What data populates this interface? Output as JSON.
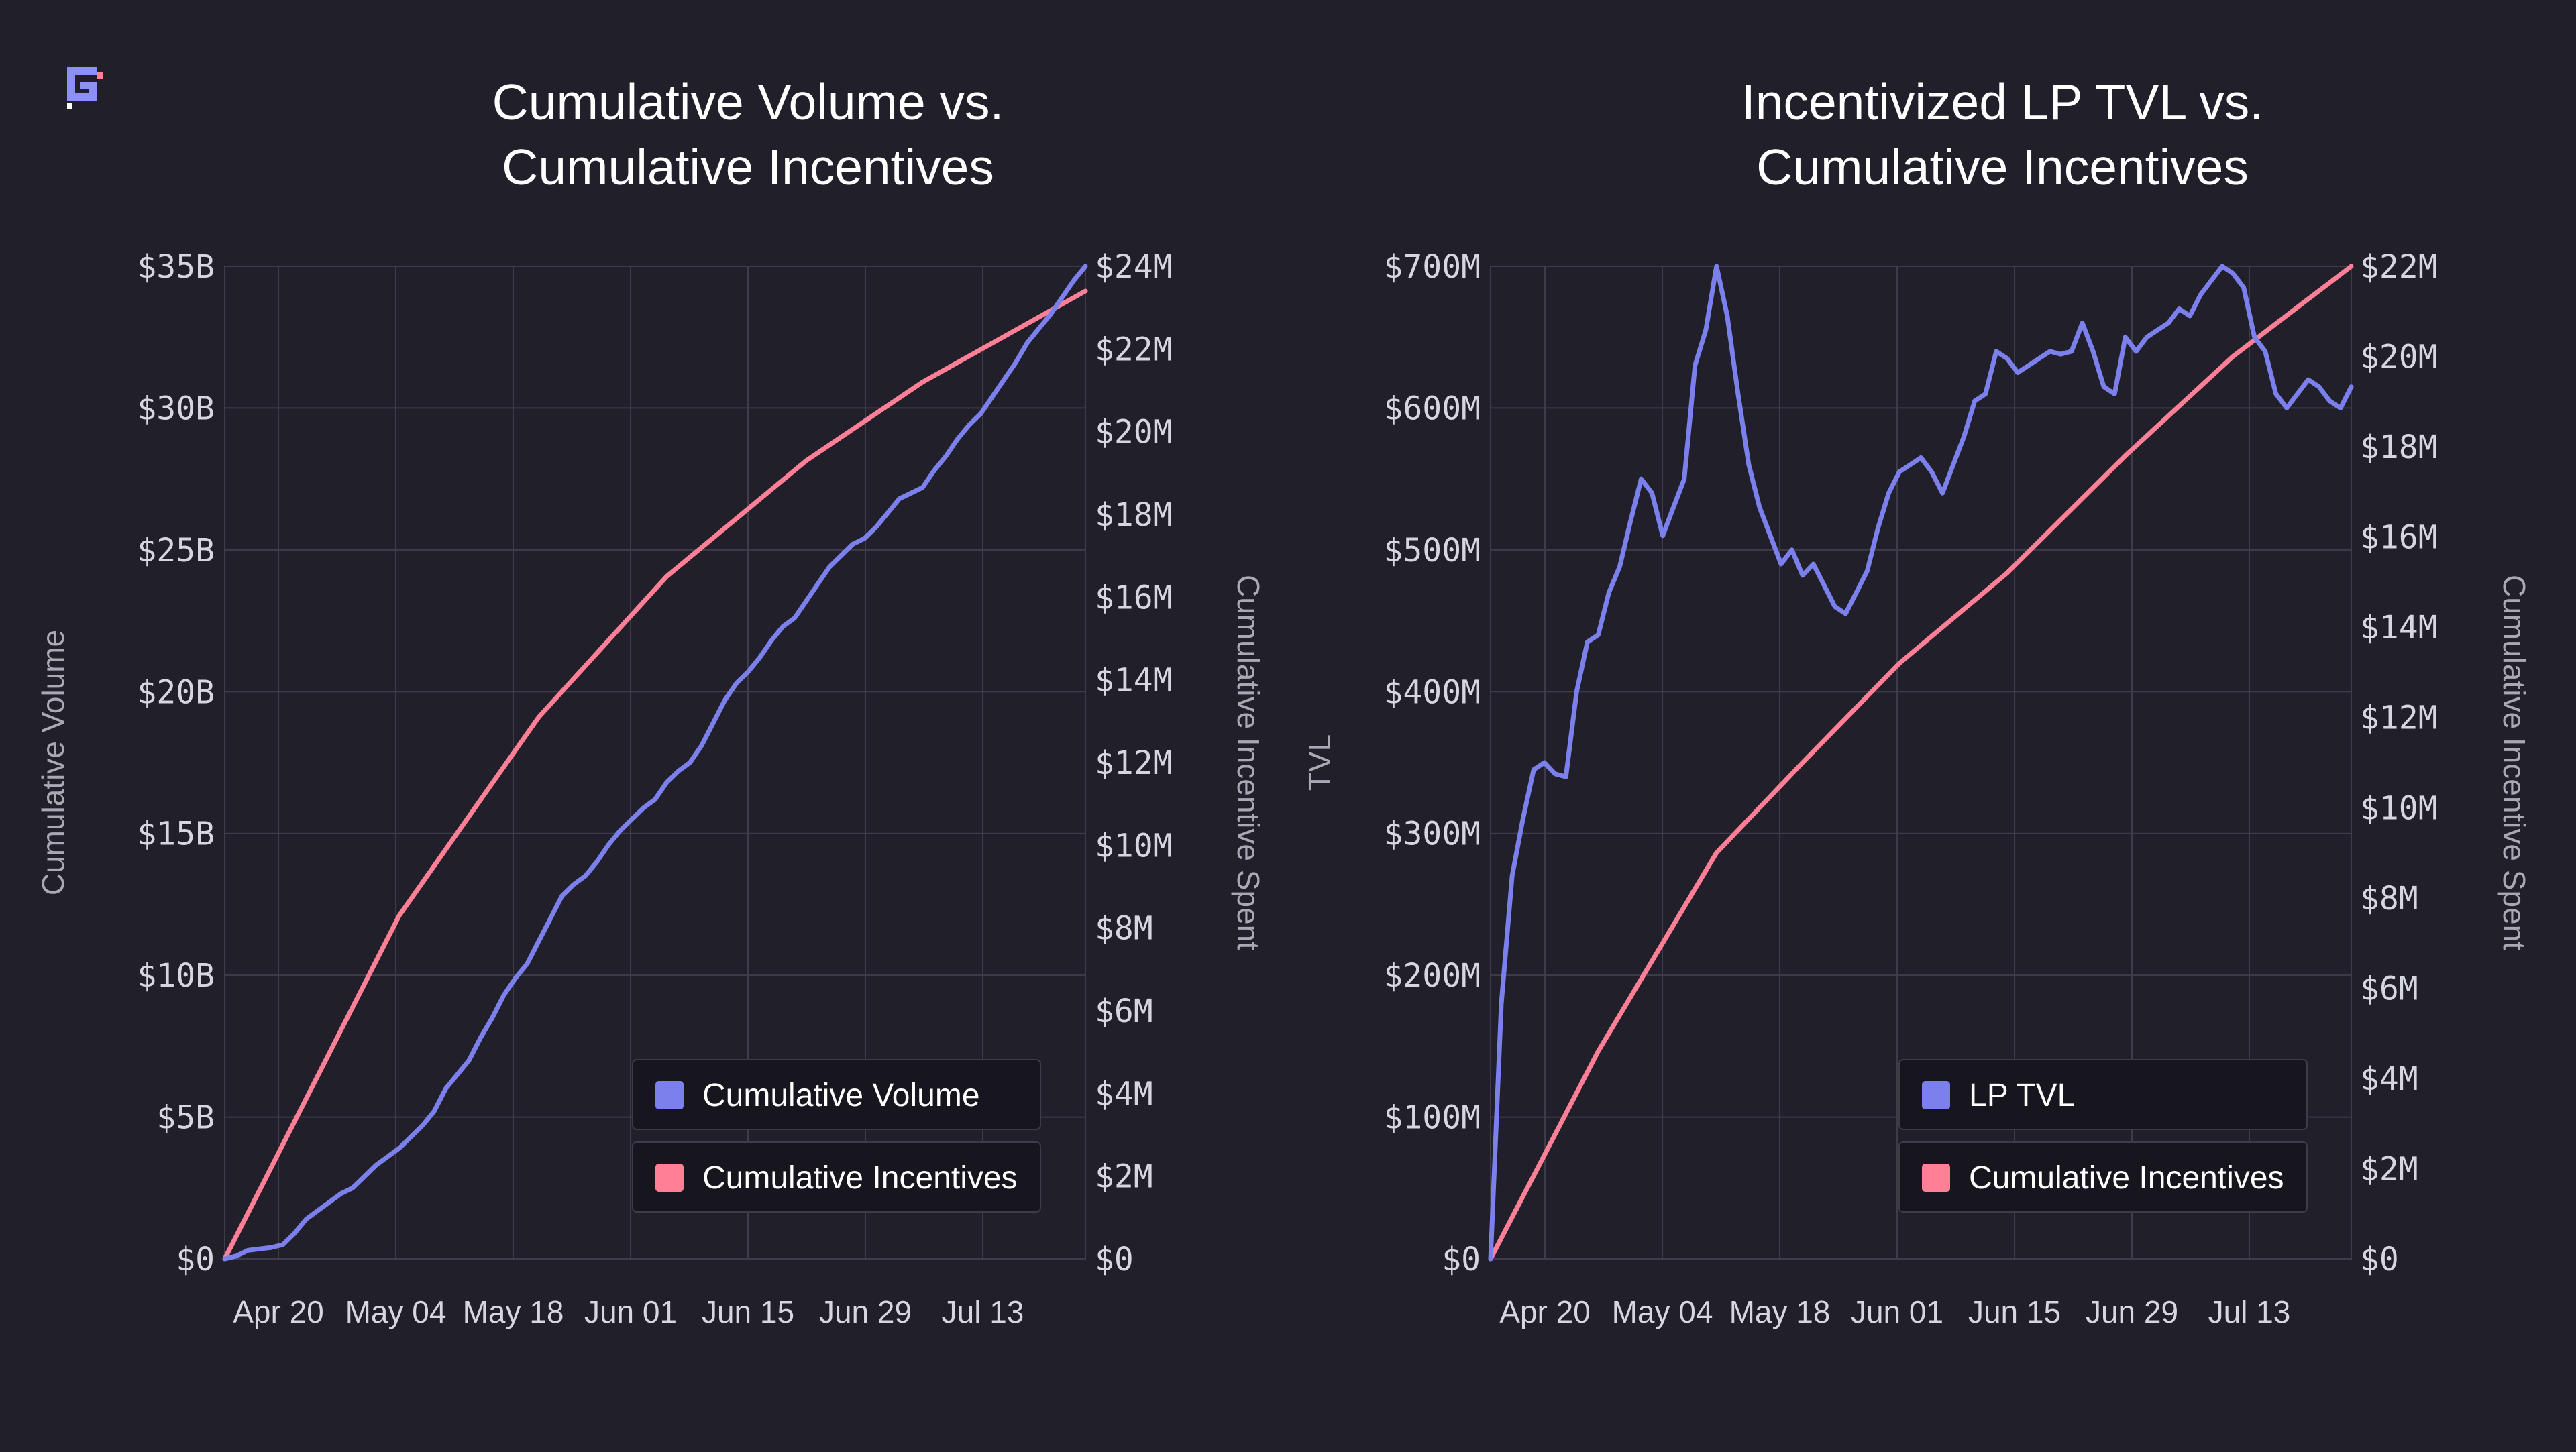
{
  "brand": {
    "logo": "glyph-logo",
    "accent": "#8b8ff7"
  },
  "colors": {
    "background": "#201f2a",
    "grid": "#3d3c49",
    "text": "#ffffff",
    "tick": "#d6d6de",
    "axis_label": "#a9a8b3",
    "series_blue": "#7b80ec",
    "series_pink": "#ff8096",
    "legend_bg": "#17161f",
    "legend_border": "#3d3c49"
  },
  "chart_data": [
    {
      "type": "line",
      "title_lines": [
        "Cumulative Volume vs.",
        "Cumulative Incentives"
      ],
      "ylabel_left": "Cumulative Volume",
      "ylabel_right": "Cumulative Incentive Spent",
      "x_ticks": [
        "Apr 20",
        "May 04",
        "May 18",
        "Jun 01",
        "Jun 15",
        "Jun 29",
        "Jul 13"
      ],
      "left_ticks": [
        "$0",
        "$5B",
        "$10B",
        "$15B",
        "$20B",
        "$25B",
        "$30B",
        "$35B"
      ],
      "right_ticks": [
        "$0",
        "$2M",
        "$4M",
        "$6M",
        "$8M",
        "$10M",
        "$12M",
        "$14M",
        "$16M",
        "$18M",
        "$20M",
        "$22M",
        "$24M"
      ],
      "x_range_days": [
        -5,
        69
      ],
      "y_left_range": [
        0,
        35
      ],
      "y_right_range": [
        0,
        24
      ],
      "grid": true,
      "legend_position": "bottom-right",
      "series": [
        {
          "name": "Cumulative Volume",
          "axis": "left",
          "color": "#7b80ec",
          "x": [
            -5,
            -4,
            -3,
            -1,
            0,
            1,
            2,
            3,
            4,
            5,
            6,
            7,
            8,
            9,
            10,
            11,
            12,
            13,
            14,
            15,
            16,
            17,
            18,
            19,
            20,
            21,
            22,
            23,
            24,
            25,
            26,
            27,
            28,
            29,
            30,
            31,
            32,
            33,
            34,
            35,
            36,
            37,
            38,
            39,
            40,
            41,
            42,
            43,
            44,
            45,
            46,
            47,
            48,
            49,
            50,
            51,
            52,
            53,
            54,
            55,
            56,
            57,
            58,
            59,
            60,
            61,
            62,
            63,
            64,
            65,
            66,
            67,
            68,
            69
          ],
          "y": [
            0,
            0.1,
            0.3,
            0.4,
            0.5,
            0.9,
            1.4,
            1.7,
            2.0,
            2.3,
            2.5,
            2.9,
            3.3,
            3.6,
            3.9,
            4.3,
            4.7,
            5.2,
            6.0,
            6.5,
            7.0,
            7.8,
            8.5,
            9.3,
            9.9,
            10.4,
            11.2,
            12.0,
            12.8,
            13.2,
            13.5,
            14.0,
            14.6,
            15.1,
            15.5,
            15.9,
            16.2,
            16.8,
            17.2,
            17.5,
            18.1,
            18.9,
            19.7,
            20.3,
            20.7,
            21.2,
            21.8,
            22.3,
            22.6,
            23.2,
            23.8,
            24.4,
            24.8,
            25.2,
            25.4,
            25.8,
            26.3,
            26.8,
            27.0,
            27.2,
            27.8,
            28.3,
            28.9,
            29.4,
            29.8,
            30.4,
            31.0,
            31.6,
            32.3,
            32.8,
            33.3,
            33.9,
            34.5,
            35.0
          ]
        },
        {
          "name": "Cumulative Incentives",
          "axis": "right",
          "color": "#ff8096",
          "x": [
            -5,
            10,
            22,
            33,
            45,
            55,
            69
          ],
          "y": [
            0,
            8.3,
            13.1,
            16.5,
            19.3,
            21.2,
            23.4
          ]
        }
      ]
    },
    {
      "type": "line",
      "title_lines": [
        "Incentivized LP TVL vs.",
        "Cumulative Incentives"
      ],
      "ylabel_left": "TVL",
      "ylabel_right": "Cumulative Incentive Spent",
      "x_ticks": [
        "Apr 20",
        "May 04",
        "May 18",
        "Jun 01",
        "Jun 15",
        "Jun 29",
        "Jul 13"
      ],
      "left_ticks": [
        "$0",
        "$100M",
        "$200M",
        "$300M",
        "$400M",
        "$500M",
        "$600M",
        "$700M"
      ],
      "right_ticks": [
        "$0",
        "$2M",
        "$4M",
        "$6M",
        "$8M",
        "$10M",
        "$12M",
        "$14M",
        "$16M",
        "$18M",
        "$20M",
        "$22M"
      ],
      "x_range_days": [
        -7,
        73
      ],
      "y_left_range": [
        0,
        700
      ],
      "y_right_range": [
        0,
        22
      ],
      "grid": true,
      "legend_position": "bottom-right",
      "series": [
        {
          "name": "LP TVL",
          "axis": "left",
          "color": "#7b80ec",
          "x": [
            -7,
            -6,
            -5,
            -4,
            -3,
            -2,
            -1,
            0,
            1,
            2,
            3,
            4,
            5,
            6,
            7,
            8,
            9,
            10,
            11,
            12,
            13,
            14,
            15,
            16,
            17,
            18,
            19,
            20,
            21,
            22,
            23,
            24,
            25,
            26,
            27,
            28,
            29,
            30,
            31,
            32,
            33,
            34,
            35,
            36,
            37,
            38,
            39,
            40,
            41,
            42,
            43,
            44,
            45,
            46,
            47,
            48,
            49,
            50,
            51,
            52,
            53,
            54,
            55,
            56,
            57,
            58,
            59,
            60,
            61,
            62,
            63,
            64,
            65,
            66,
            67,
            68,
            69,
            70,
            71,
            72,
            73
          ],
          "y": [
            0,
            180,
            270,
            310,
            345,
            350,
            342,
            340,
            400,
            435,
            440,
            470,
            488,
            520,
            550,
            540,
            510,
            530,
            550,
            630,
            655,
            700,
            665,
            610,
            560,
            530,
            510,
            490,
            500,
            482,
            490,
            475,
            460,
            455,
            470,
            485,
            515,
            540,
            555,
            560,
            565,
            555,
            540,
            560,
            580,
            605,
            610,
            640,
            635,
            625,
            630,
            635,
            640,
            638,
            640,
            660,
            640,
            615,
            610,
            650,
            640,
            650,
            655,
            660,
            670,
            665,
            680,
            690,
            700,
            695,
            685,
            650,
            640,
            610,
            600,
            610,
            620,
            615,
            605,
            600,
            615
          ]
        },
        {
          "name": "Cumulative Incentives",
          "axis": "right",
          "color": "#ff8096",
          "x": [
            -7,
            3,
            14,
            22,
            31,
            41,
            52,
            62,
            73
          ],
          "y": [
            0,
            4.6,
            9.0,
            11.0,
            13.2,
            15.2,
            17.8,
            20.0,
            22.0
          ]
        }
      ]
    }
  ]
}
